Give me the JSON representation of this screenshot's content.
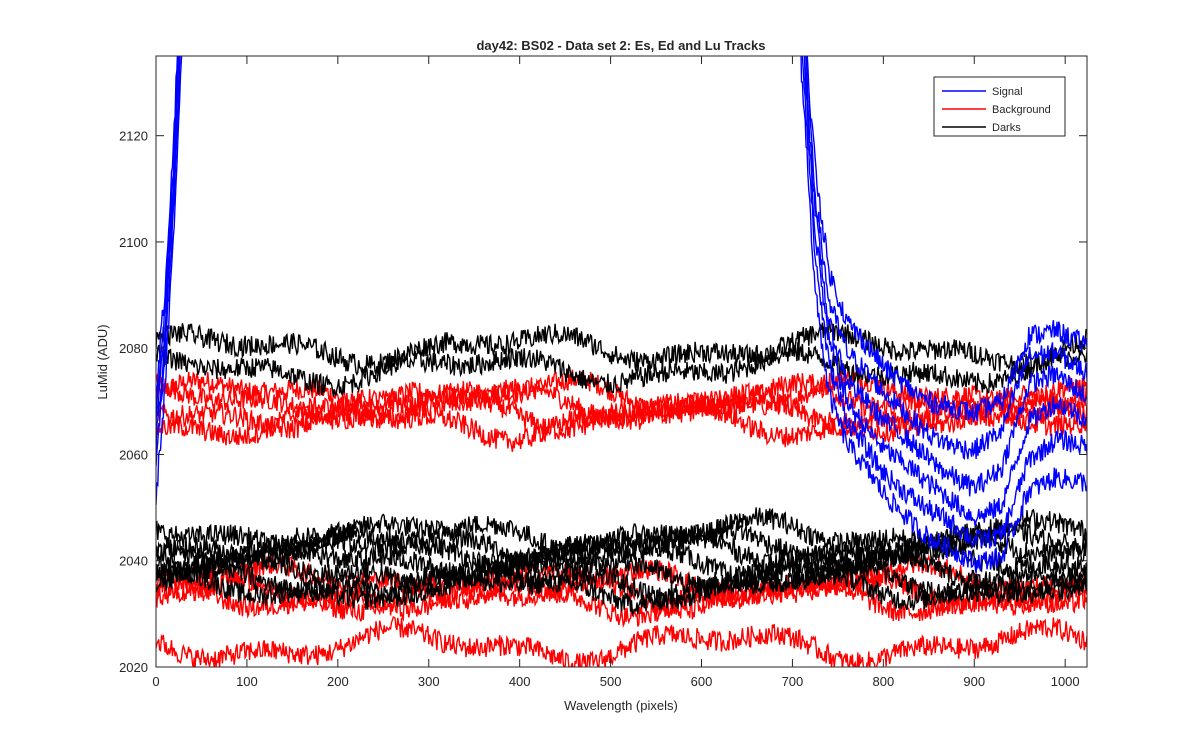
{
  "chart_data": {
    "type": "line",
    "title": "day42: BS02 - Data set 2: Es, Ed and Lu Tracks",
    "xlabel": "Wavelength (pixels)",
    "ylabel": "LuMid (ADU)",
    "xlim": [
      0,
      1024
    ],
    "ylim": [
      2020,
      2135
    ],
    "x_ticks": [
      0,
      100,
      200,
      300,
      400,
      500,
      600,
      700,
      800,
      900,
      1000
    ],
    "y_ticks": [
      2020,
      2040,
      2060,
      2080,
      2100,
      2120
    ],
    "grid": false,
    "legend": {
      "position": "top-right",
      "entries": [
        {
          "label": "Signal",
          "color": "#0000ff"
        },
        {
          "label": "Background",
          "color": "#ff0000"
        },
        {
          "label": "Darks",
          "color": "#000000"
        }
      ]
    },
    "series_groups": [
      {
        "name": "Signal",
        "color": "#0000ff",
        "note_traces": 6,
        "profile": [
          [
            0,
            2060
          ],
          [
            10,
            2080
          ],
          [
            20,
            2110
          ],
          [
            30,
            2150
          ],
          [
            60,
            2200
          ],
          [
            100,
            2300
          ],
          [
            400,
            2400
          ],
          [
            690,
            2300
          ],
          [
            710,
            2140
          ],
          [
            725,
            2100
          ],
          [
            740,
            2080
          ],
          [
            760,
            2070
          ],
          [
            800,
            2062
          ],
          [
            850,
            2055
          ],
          [
            900,
            2050
          ],
          [
            930,
            2052
          ],
          [
            960,
            2066
          ],
          [
            990,
            2068
          ],
          [
            1024,
            2065
          ]
        ]
      },
      {
        "name": "Background",
        "color": "#ff0000",
        "levels_upper": [
          2071,
          2070,
          2068,
          2066
        ],
        "levels_lower": [
          2036,
          2034,
          2033,
          2024
        ]
      },
      {
        "name": "Darks",
        "color": "#000000",
        "levels_upper": [
          2080,
          2076
        ],
        "levels_lower": [
          2045,
          2043,
          2042,
          2040,
          2038,
          2036,
          2035
        ]
      }
    ]
  }
}
